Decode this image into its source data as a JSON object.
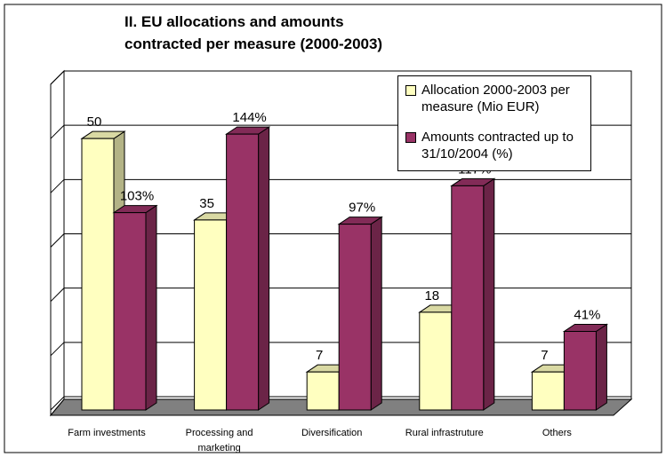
{
  "chart_data": {
    "type": "bar3d",
    "title": "II. EU allocations and amounts contracted per measure (2000-2003)",
    "categories": [
      "Farm investments",
      "Processing and marketing",
      "Diversification",
      "Rural infrastruture",
      "Others"
    ],
    "series": [
      {
        "name": "Allocation 2000-2003 per measure (Mio EUR)",
        "color": "#ffffc0",
        "values": [
          50,
          35,
          7,
          18,
          7
        ]
      },
      {
        "name": "Amounts contracted up to 31/10/2004 (%)",
        "color": "#993366",
        "axis": "y2",
        "values": [
          103,
          144,
          97,
          117,
          41
        ],
        "value_labels": [
          "103%",
          "144%",
          "97%",
          "117%",
          "41%"
        ]
      }
    ],
    "ylim": [
      0,
      60
    ],
    "yticks": [
      0,
      10,
      20,
      30,
      40,
      50,
      60
    ],
    "y2lim": [
      0,
      170
    ],
    "grid": true,
    "legend": "upper right"
  }
}
